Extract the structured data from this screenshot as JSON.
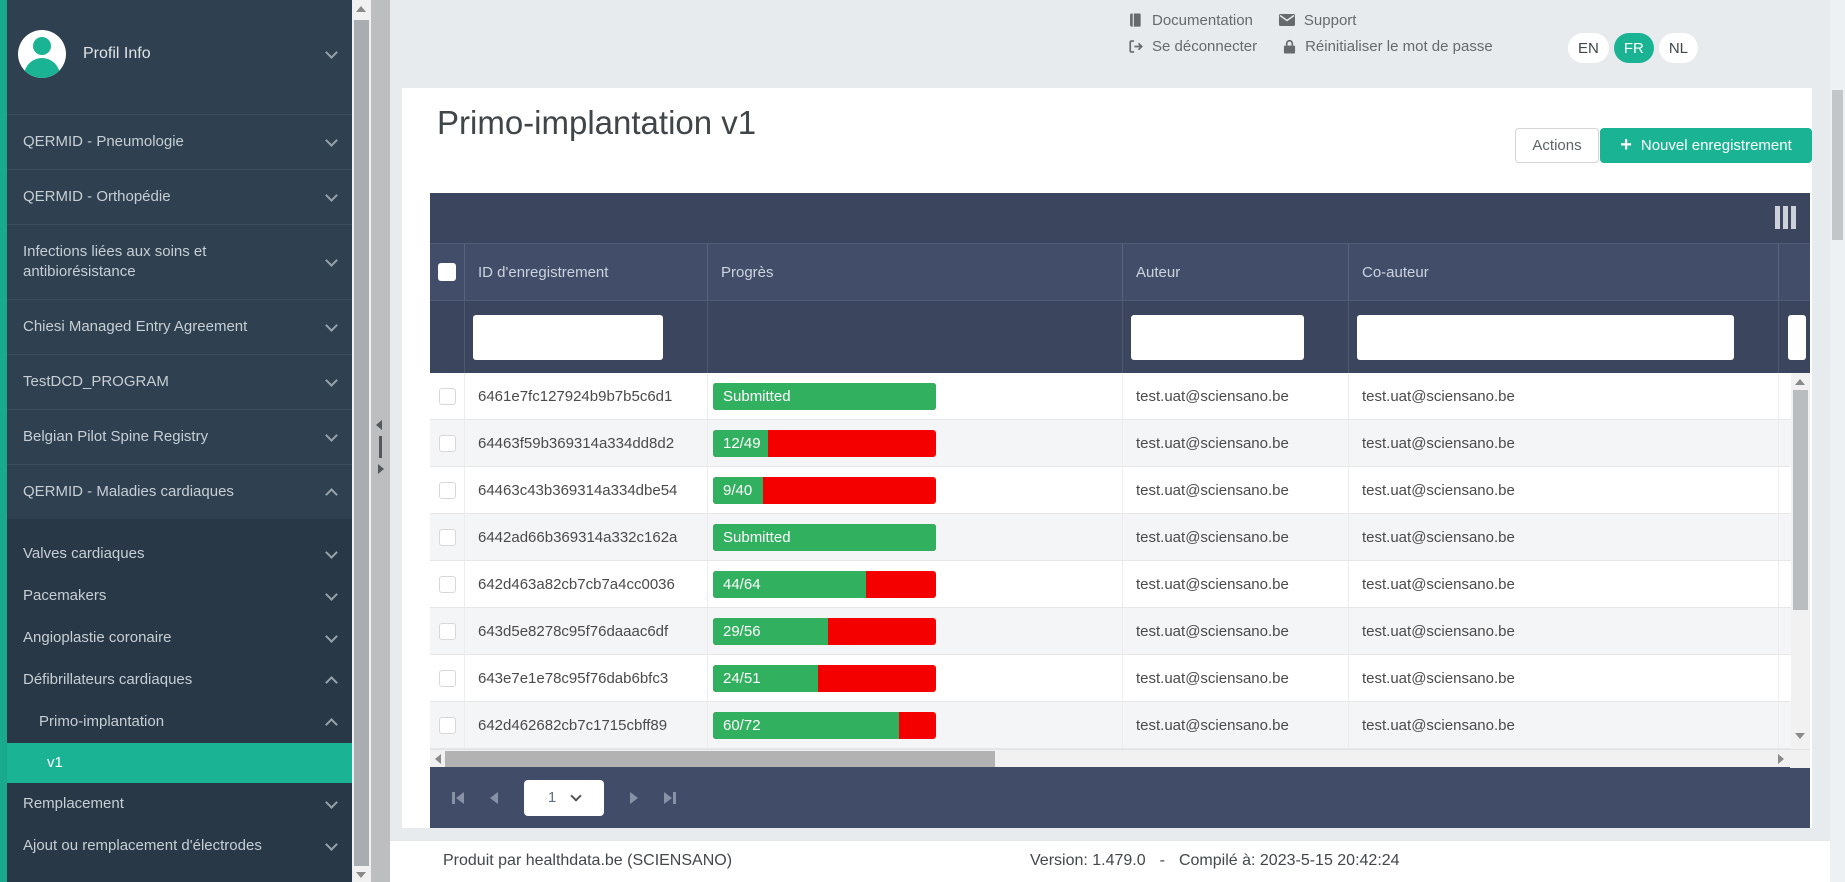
{
  "sidebar": {
    "profile_label": "Profil Info",
    "items": [
      {
        "label": "QERMID - Pneumologie",
        "level": 1,
        "state": "collapsed"
      },
      {
        "label": "QERMID - Orthopédie",
        "level": 1,
        "state": "collapsed"
      },
      {
        "label": "Infections liées aux soins et antibiorésistance",
        "level": 1,
        "state": "collapsed"
      },
      {
        "label": "Chiesi Managed Entry Agreement",
        "level": 1,
        "state": "collapsed"
      },
      {
        "label": "TestDCD_PROGRAM",
        "level": 1,
        "state": "collapsed"
      },
      {
        "label": "Belgian Pilot Spine Registry",
        "level": 1,
        "state": "collapsed"
      },
      {
        "label": "QERMID - Maladies cardiaques",
        "level": 1,
        "state": "expanded"
      },
      {
        "label": "Valves cardiaques",
        "level": 2,
        "state": "collapsed"
      },
      {
        "label": "Pacemakers",
        "level": 2,
        "state": "collapsed"
      },
      {
        "label": "Angioplastie coronaire",
        "level": 2,
        "state": "collapsed"
      },
      {
        "label": "Défibrillateurs cardiaques",
        "level": 2,
        "state": "expanded"
      },
      {
        "label": "Primo-implantation",
        "level": 3,
        "state": "expanded"
      },
      {
        "label": "v1",
        "level": 4,
        "state": "active"
      },
      {
        "label": "Remplacement",
        "level": 2,
        "state": "collapsed"
      },
      {
        "label": "Ajout ou remplacement d'électrodes",
        "level": 2,
        "state": "collapsed"
      }
    ]
  },
  "header": {
    "links": [
      {
        "label": "Documentation",
        "icon": "book-icon"
      },
      {
        "label": "Support",
        "icon": "envelope-icon"
      },
      {
        "label": "Se déconnecter",
        "icon": "sign-out-icon"
      },
      {
        "label": "Réinitialiser le mot de passe",
        "icon": "lock-icon"
      }
    ],
    "languages": [
      {
        "code": "EN",
        "active": false
      },
      {
        "code": "FR",
        "active": true
      },
      {
        "code": "NL",
        "active": false
      }
    ]
  },
  "page": {
    "title": "Primo-implantation v1",
    "actions_label": "Actions",
    "new_label": "Nouvel enregistrement",
    "new_icon": "plus-icon"
  },
  "table": {
    "columns": [
      "ID d'enregistrement",
      "Progrès",
      "Auteur",
      "Co-auteur"
    ],
    "filters": {
      "id": "",
      "author": "",
      "coauthor": ""
    },
    "rows": [
      {
        "id": "6461e7fc127924b9b7b5c6d1",
        "progress": {
          "label": "Submitted",
          "value": 1,
          "total": 1
        },
        "author": "test.uat@sciensano.be",
        "coauthor": "test.uat@sciensano.be"
      },
      {
        "id": "64463f59b369314a334dd8d2",
        "progress": {
          "label": "12/49",
          "value": 12,
          "total": 49
        },
        "author": "test.uat@sciensano.be",
        "coauthor": "test.uat@sciensano.be"
      },
      {
        "id": "64463c43b369314a334dbe54",
        "progress": {
          "label": "9/40",
          "value": 9,
          "total": 40
        },
        "author": "test.uat@sciensano.be",
        "coauthor": "test.uat@sciensano.be"
      },
      {
        "id": "6442ad66b369314a332c162a",
        "progress": {
          "label": "Submitted",
          "value": 1,
          "total": 1
        },
        "author": "test.uat@sciensano.be",
        "coauthor": "test.uat@sciensano.be"
      },
      {
        "id": "642d463a82cb7cb7a4cc0036",
        "progress": {
          "label": "44/64",
          "value": 44,
          "total": 64
        },
        "author": "test.uat@sciensano.be",
        "coauthor": "test.uat@sciensano.be"
      },
      {
        "id": "643d5e8278c95f76daaac6df",
        "progress": {
          "label": "29/56",
          "value": 29,
          "total": 56
        },
        "author": "test.uat@sciensano.be",
        "coauthor": "test.uat@sciensano.be"
      },
      {
        "id": "643e7e1e78c95f76dab6bfc3",
        "progress": {
          "label": "24/51",
          "value": 24,
          "total": 51
        },
        "author": "test.uat@sciensano.be",
        "coauthor": "test.uat@sciensano.be"
      },
      {
        "id": "642d462682cb7c1715cbff89",
        "progress": {
          "label": "60/72",
          "value": 60,
          "total": 72
        },
        "author": "test.uat@sciensano.be",
        "coauthor": "test.uat@sciensano.be"
      }
    ]
  },
  "pager": {
    "current_page": "1"
  },
  "footer": {
    "produced_by": "Produit par healthdata.be (SCIENSANO)",
    "version": "Version: 1.479.0",
    "dash": "-",
    "compiled": "Compilé à: 2023-5-15 20:42:24"
  },
  "colors": {
    "accent": "#1ab394",
    "sidebar_bg": "#2f4050",
    "submenu_bg": "#293846",
    "table_header_bg": "#424e69",
    "progress_green": "#31b05f",
    "progress_red": "#f50000"
  }
}
